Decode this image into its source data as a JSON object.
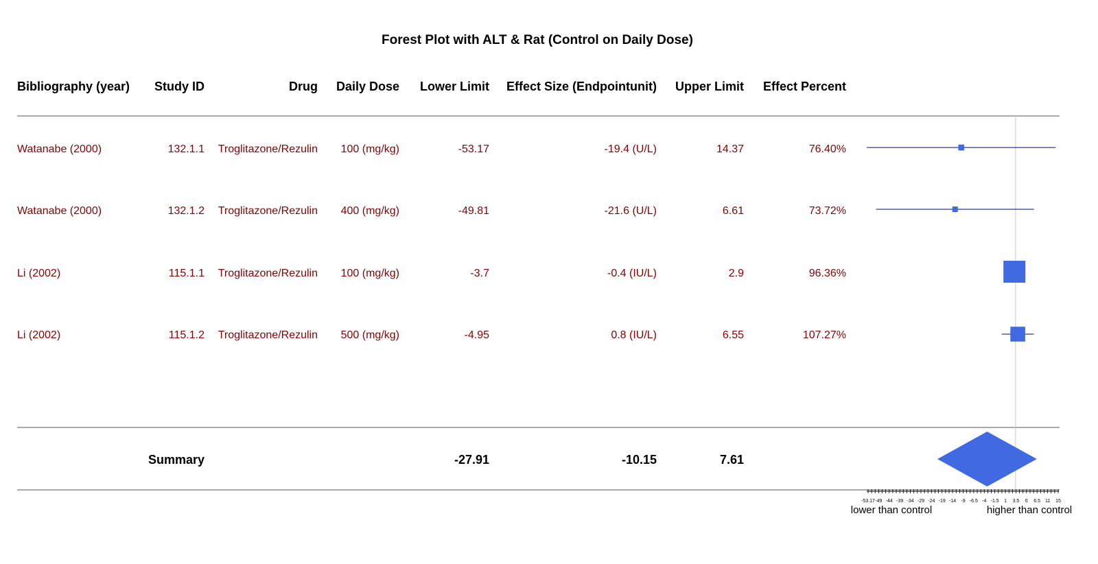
{
  "title": "Forest Plot with ALT & Rat (Control on Daily Dose)",
  "columns": [
    "Bibliography (year)",
    "Study ID",
    "Drug",
    "Daily Dose",
    "Lower Limit",
    "Effect Size (Endpointunit)",
    "Upper Limit",
    "Effect Percent"
  ],
  "rows": [
    {
      "bibliography": "Watanabe (2000)",
      "study_id": "132.1.1",
      "drug": "Troglitazone/Rezulin",
      "daily_dose": "100 (mg/kg)",
      "lower": "-53.17",
      "effect": "-19.4 (U/L)",
      "upper": "14.37",
      "percent": "76.40%"
    },
    {
      "bibliography": "Watanabe (2000)",
      "study_id": "132.1.2",
      "drug": "Troglitazone/Rezulin",
      "daily_dose": "400 (mg/kg)",
      "lower": "-49.81",
      "effect": "-21.6 (U/L)",
      "upper": "6.61",
      "percent": "73.72%"
    },
    {
      "bibliography": "Li (2002)",
      "study_id": "115.1.1",
      "drug": "Troglitazone/Rezulin",
      "daily_dose": "100 (mg/kg)",
      "lower": "-3.7",
      "effect": "-0.4 (IU/L)",
      "upper": "2.9",
      "percent": "96.36%"
    },
    {
      "bibliography": "Li (2002)",
      "study_id": "115.1.2",
      "drug": "Troglitazone/Rezulin",
      "daily_dose": "500 (mg/kg)",
      "lower": "-4.95",
      "effect": "0.8 (IU/L)",
      "upper": "6.55",
      "percent": "107.27%"
    }
  ],
  "summary": {
    "label": "Summary",
    "lower": "-27.91",
    "effect": "-10.15",
    "upper": "7.61"
  },
  "axis": {
    "tick_labels": [
      "-53.17",
      "-49",
      "-44",
      "-39",
      "-34",
      "-29",
      "-24",
      "-19",
      "-14",
      "-9",
      "-6.5",
      "-4",
      "-1.5",
      "1",
      "3.5",
      "6",
      "6.5",
      "11",
      "15"
    ],
    "lower_label": "lower than control",
    "higher_label": "higher than control"
  },
  "chart_data": {
    "type": "forest",
    "title": "Forest Plot with ALT & Rat (Control on Daily Dose)",
    "xlim": [
      -53.17,
      15
    ],
    "reference_line": 0,
    "studies": [
      {
        "label": "Watanabe (2000)",
        "study_id": "132.1.1",
        "lower": -53.17,
        "effect": -19.4,
        "upper": 14.37,
        "weight": 0.1
      },
      {
        "label": "Watanabe (2000)",
        "study_id": "132.1.2",
        "lower": -49.81,
        "effect": -21.6,
        "upper": 6.61,
        "weight": 0.08
      },
      {
        "label": "Li (2002)",
        "study_id": "115.1.1",
        "lower": -3.7,
        "effect": -0.4,
        "upper": 2.9,
        "weight": 1.0
      },
      {
        "label": "Li (2002)",
        "study_id": "115.1.2",
        "lower": -4.95,
        "effect": 0.8,
        "upper": 6.55,
        "weight": 0.6
      }
    ],
    "summary": {
      "lower": -27.91,
      "effect": -10.15,
      "upper": 7.61
    },
    "colors": {
      "marker": "#4169e1",
      "whisker": "#00008b",
      "text": "#8b0000",
      "reference": "#c8c8c8"
    }
  }
}
